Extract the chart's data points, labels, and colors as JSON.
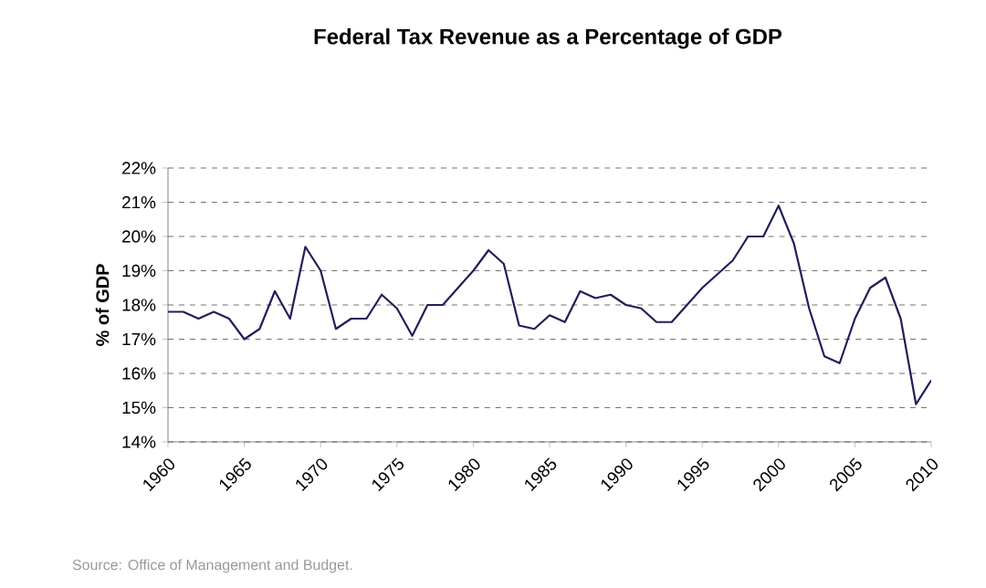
{
  "chart_data": {
    "type": "line",
    "title": "Federal Tax Revenue as a Percentage of GDP",
    "ylabel": "% of GDP",
    "x": [
      1960,
      1961,
      1962,
      1963,
      1964,
      1965,
      1966,
      1967,
      1968,
      1969,
      1970,
      1971,
      1972,
      1973,
      1974,
      1975,
      1976,
      1977,
      1978,
      1979,
      1980,
      1981,
      1982,
      1983,
      1984,
      1985,
      1986,
      1987,
      1988,
      1989,
      1990,
      1991,
      1992,
      1993,
      1994,
      1995,
      1996,
      1997,
      1998,
      1999,
      2000,
      2001,
      2002,
      2003,
      2004,
      2005,
      2006,
      2007,
      2008,
      2009,
      2010
    ],
    "series": [
      {
        "color": "#1f1f5a",
        "values": [
          17.8,
          17.8,
          17.6,
          17.8,
          17.6,
          17.0,
          17.3,
          18.4,
          17.6,
          19.7,
          19.0,
          17.3,
          17.6,
          17.6,
          18.3,
          17.9,
          17.1,
          18.0,
          18.0,
          18.5,
          19.0,
          19.6,
          19.2,
          17.4,
          17.3,
          17.7,
          17.5,
          18.4,
          18.2,
          18.3,
          18.0,
          17.9,
          17.5,
          17.5,
          18.0,
          18.5,
          18.9,
          19.3,
          20.0,
          20.0,
          20.9,
          19.8,
          17.9,
          16.5,
          16.3,
          17.6,
          18.5,
          18.8,
          17.6,
          15.1,
          15.8
        ]
      }
    ],
    "xlim": [
      1960,
      2010
    ],
    "xticks": [
      1960,
      1965,
      1970,
      1975,
      1980,
      1985,
      1990,
      1995,
      2000,
      2005,
      2010
    ],
    "ylim": [
      14,
      22
    ],
    "yticks": [
      {
        "value": 14,
        "label": "14%"
      },
      {
        "value": 15,
        "label": "15%"
      },
      {
        "value": 16,
        "label": "16%"
      },
      {
        "value": 17,
        "label": "17%"
      },
      {
        "value": 18,
        "label": "18%"
      },
      {
        "value": 19,
        "label": "19%"
      },
      {
        "value": 20,
        "label": "20%"
      },
      {
        "value": 21,
        "label": "21%"
      },
      {
        "value": 22,
        "label": "22%"
      }
    ],
    "grid": "y",
    "line_style": "solid",
    "marker": "none",
    "annotations": [
      "Source: Office of Management and Budget."
    ]
  }
}
